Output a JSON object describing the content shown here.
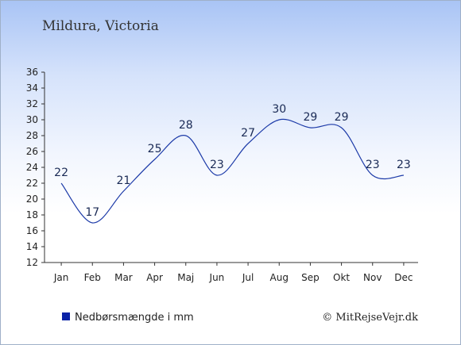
{
  "location": "Mildura, Victoria",
  "legend_label": "Nedbørsmængde i mm",
  "credit": "© MitRejseVejr.dk",
  "colors": {
    "line": "#1c3aa8",
    "legend_swatch": "#0a22a6",
    "axis": "#333333"
  },
  "chart_data": {
    "type": "line",
    "categories": [
      "Jan",
      "Feb",
      "Mar",
      "Apr",
      "Maj",
      "Jun",
      "Jul",
      "Aug",
      "Sep",
      "Okt",
      "Nov",
      "Dec"
    ],
    "values": [
      22,
      17,
      21,
      25,
      28,
      23,
      27,
      30,
      29,
      29,
      23,
      23
    ],
    "ylim": [
      12,
      36
    ],
    "yticks": [
      12,
      14,
      16,
      18,
      20,
      22,
      24,
      26,
      28,
      30,
      32,
      34,
      36
    ],
    "grid": false,
    "legend_position": "bottom-left"
  }
}
